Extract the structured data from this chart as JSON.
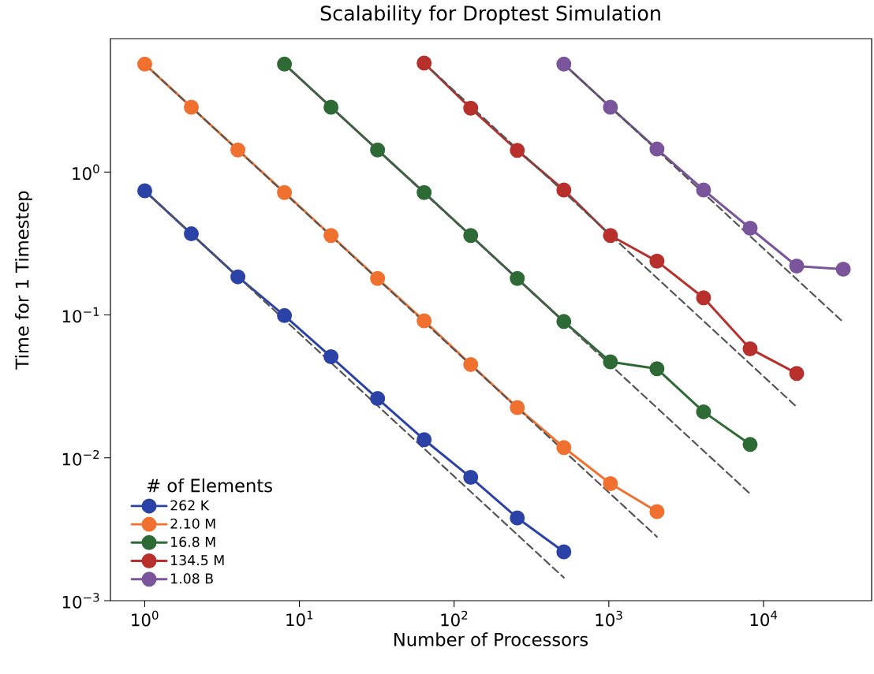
{
  "chart_data": {
    "type": "line",
    "title": "Scalability for Droptest Simulation",
    "xlabel": "Number of Processors",
    "ylabel": "Time for 1 Timestep",
    "legend_title": "# of Elements",
    "log": "xy",
    "legend": "bottom left",
    "marker": "circle",
    "line_style": "solid",
    "xlim": [
      0.6,
      50000
    ],
    "ylim": [
      0.001,
      8.6
    ],
    "xticks": [
      {
        "value": 1,
        "label": "10$^{0}$"
      },
      {
        "value": 10,
        "label": "10$^{1}$"
      },
      {
        "value": 100,
        "label": "10$^{2}$"
      },
      {
        "value": 1000,
        "label": "10$^{3}$"
      },
      {
        "value": 10000,
        "label": "10$^{4}$"
      }
    ],
    "yticks": [
      {
        "value": 0.001,
        "label": "10$^{−3}$"
      },
      {
        "value": 0.01,
        "label": "10$^{−2}$"
      },
      {
        "value": 0.1,
        "label": "10$^{−1}$"
      },
      {
        "value": 1,
        "label": "10$^{0}$"
      }
    ],
    "series": [
      {
        "name": "262 K",
        "color": "#2b42a6",
        "x": [
          1,
          2,
          4,
          8,
          16,
          32,
          64,
          128,
          256,
          512
        ],
        "values": [
          0.74,
          0.37,
          0.185,
          0.099,
          0.051,
          0.026,
          0.0134,
          0.0073,
          0.0038,
          0.0022
        ]
      },
      {
        "name": "2.10 M",
        "color": "#f07030",
        "x": [
          1,
          2,
          4,
          8,
          16,
          32,
          64,
          128,
          256,
          512,
          1024,
          2048
        ],
        "values": [
          5.7,
          2.85,
          1.43,
          0.72,
          0.36,
          0.18,
          0.091,
          0.045,
          0.0225,
          0.0118,
          0.0066,
          0.0042
        ]
      },
      {
        "name": "16.8 M",
        "color": "#2e6a35",
        "x": [
          8,
          16,
          32,
          64,
          128,
          256,
          512,
          1024,
          2048,
          4096,
          8192
        ],
        "values": [
          5.7,
          2.85,
          1.43,
          0.72,
          0.36,
          0.18,
          0.09,
          0.047,
          0.042,
          0.021,
          0.0124
        ]
      },
      {
        "name": "134.5 M",
        "color": "#b8302c",
        "x": [
          64,
          128,
          256,
          512,
          1024,
          2048,
          4096,
          8192,
          16384
        ],
        "values": [
          5.8,
          2.8,
          1.42,
          0.75,
          0.36,
          0.238,
          0.132,
          0.058,
          0.039
        ]
      },
      {
        "name": "1.08 B",
        "color": "#7a559c",
        "x": [
          512,
          1024,
          2048,
          4096,
          8192,
          16384,
          32768
        ],
        "values": [
          5.7,
          2.85,
          1.45,
          0.75,
          0.405,
          0.22,
          0.209
        ]
      },
      {
        "color": "#555555",
        "line_style": "dashed",
        "marker": "none",
        "x": [
          1,
          512
        ],
        "values": [
          0.74,
          0.00145
        ]
      },
      {
        "color": "#555555",
        "line_style": "dashed",
        "marker": "none",
        "x": [
          1,
          2048
        ],
        "values": [
          5.7,
          0.0028
        ]
      },
      {
        "color": "#555555",
        "line_style": "dashed",
        "marker": "none",
        "x": [
          8,
          8192
        ],
        "values": [
          5.7,
          0.0056
        ]
      },
      {
        "color": "#555555",
        "line_style": "dashed",
        "marker": "none",
        "x": [
          64,
          16384
        ],
        "values": [
          5.8,
          0.0227
        ]
      },
      {
        "color": "#555555",
        "line_style": "dashed",
        "marker": "none",
        "x": [
          512,
          32768
        ],
        "values": [
          5.7,
          0.089
        ]
      }
    ]
  }
}
